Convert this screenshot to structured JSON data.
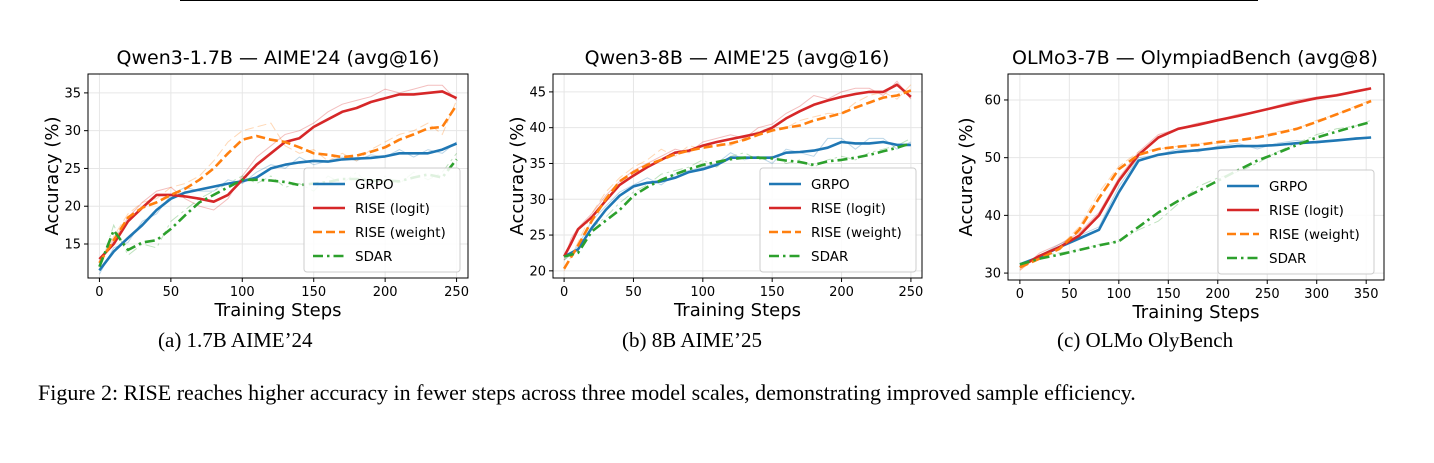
{
  "chart_data": [
    {
      "type": "line",
      "title": "Qwen3-1.7B — AIME'24 (avg@16)",
      "xlabel": "Training Steps",
      "ylabel": "Accuracy (%)",
      "xlim": [
        -8,
        258
      ],
      "ylim": [
        10.5,
        37.5
      ],
      "xticks": [
        0,
        50,
        100,
        150,
        200,
        250
      ],
      "yticks": [
        15,
        20,
        25,
        30,
        35
      ],
      "grid": true,
      "legend": "lower-right",
      "series": [
        {
          "name": "GRPO",
          "color": "#1f77b4",
          "style": "solid",
          "x": [
            0,
            10,
            20,
            30,
            40,
            50,
            60,
            70,
            80,
            90,
            100,
            110,
            120,
            130,
            140,
            150,
            160,
            170,
            180,
            190,
            200,
            210,
            220,
            230,
            240,
            250
          ],
          "y": [
            11.5,
            14.0,
            15.8,
            17.5,
            19.5,
            21.0,
            21.8,
            22.2,
            22.6,
            23.0,
            23.3,
            23.8,
            25.0,
            25.5,
            25.8,
            26.0,
            25.9,
            26.2,
            26.3,
            26.4,
            26.6,
            27.0,
            27.0,
            27.0,
            27.5,
            28.3
          ],
          "raw": [
            11.0,
            14.5,
            15.2,
            18.0,
            19.0,
            21.5,
            22.5,
            22.0,
            22.0,
            23.5,
            23.0,
            24.5,
            25.5,
            25.0,
            26.5,
            25.5,
            26.0,
            26.5,
            26.0,
            26.8,
            26.5,
            27.5,
            26.5,
            27.5,
            27.0,
            28.5
          ]
        },
        {
          "name": "RISE (logit)",
          "color": "#d62728",
          "style": "solid",
          "x": [
            0,
            10,
            20,
            30,
            40,
            50,
            60,
            70,
            80,
            90,
            100,
            110,
            120,
            130,
            140,
            150,
            160,
            170,
            180,
            190,
            200,
            210,
            220,
            230,
            240,
            250
          ],
          "y": [
            13.0,
            15.0,
            18.0,
            19.8,
            21.5,
            21.5,
            21.3,
            21.0,
            20.6,
            21.5,
            23.5,
            25.5,
            27.0,
            28.5,
            29.0,
            30.5,
            31.5,
            32.5,
            33.0,
            33.8,
            34.3,
            34.8,
            34.8,
            35.0,
            35.2,
            34.3
          ],
          "raw": [
            12.5,
            15.5,
            18.5,
            20.5,
            22.0,
            22.5,
            21.0,
            20.0,
            19.5,
            21.0,
            24.0,
            26.5,
            28.0,
            29.5,
            30.0,
            31.0,
            32.5,
            33.5,
            34.0,
            34.5,
            35.5,
            35.0,
            35.5,
            36.0,
            36.0,
            34.0
          ]
        },
        {
          "name": "RISE (weight)",
          "color": "#ff7f0e",
          "style": "dash",
          "x": [
            0,
            10,
            20,
            30,
            40,
            50,
            60,
            70,
            80,
            90,
            100,
            110,
            120,
            130,
            140,
            150,
            160,
            170,
            180,
            190,
            200,
            210,
            220,
            230,
            240,
            250
          ],
          "y": [
            12.5,
            15.5,
            18.5,
            19.8,
            20.5,
            21.5,
            22.3,
            23.5,
            25.0,
            27.0,
            28.8,
            29.3,
            28.8,
            28.5,
            27.8,
            27.0,
            26.8,
            26.5,
            26.7,
            27.2,
            27.8,
            28.8,
            29.5,
            30.3,
            30.5,
            33.4
          ],
          "raw": [
            12.0,
            16.0,
            19.0,
            20.5,
            21.0,
            22.5,
            23.0,
            24.0,
            26.0,
            28.5,
            30.0,
            30.5,
            31.0,
            28.0,
            27.0,
            27.5,
            26.0,
            27.0,
            26.0,
            27.5,
            28.5,
            29.5,
            30.0,
            31.0,
            29.5,
            34.0
          ]
        },
        {
          "name": "SDAR",
          "color": "#2ca02c",
          "style": "dashdot",
          "x": [
            0,
            10,
            20,
            30,
            40,
            50,
            60,
            70,
            80,
            90,
            100,
            110,
            120,
            130,
            140,
            150,
            160,
            170,
            180,
            190,
            200,
            210,
            220,
            230,
            240,
            250
          ],
          "y": [
            12.0,
            16.8,
            14.2,
            15.2,
            15.5,
            17.0,
            18.8,
            20.5,
            21.5,
            22.5,
            23.5,
            23.5,
            23.4,
            23.2,
            22.8,
            23.0,
            23.2,
            23.6,
            23.6,
            23.4,
            23.4,
            23.3,
            23.8,
            24.2,
            23.8,
            26.2
          ],
          "raw": [
            11.5,
            17.5,
            13.5,
            15.0,
            14.5,
            18.0,
            19.5,
            21.0,
            22.0,
            23.0,
            24.0,
            23.0,
            24.0,
            22.5,
            23.0,
            22.0,
            24.0,
            23.0,
            24.5,
            22.5,
            24.0,
            23.0,
            24.5,
            23.5,
            24.5,
            27.0
          ]
        }
      ]
    },
    {
      "type": "line",
      "title": "Qwen3-8B — AIME'25 (avg@16)",
      "xlabel": "Training Steps",
      "ylabel": "Accuracy (%)",
      "xlim": [
        -8,
        258
      ],
      "ylim": [
        19,
        47.5
      ],
      "xticks": [
        0,
        50,
        100,
        150,
        200,
        250
      ],
      "yticks": [
        20,
        25,
        30,
        35,
        40,
        45
      ],
      "grid": true,
      "legend": "lower-right",
      "series": [
        {
          "name": "GRPO",
          "color": "#1f77b4",
          "style": "solid",
          "x": [
            0,
            10,
            20,
            30,
            40,
            50,
            60,
            70,
            80,
            90,
            100,
            110,
            120,
            130,
            140,
            150,
            160,
            170,
            180,
            190,
            200,
            210,
            220,
            230,
            240,
            250
          ],
          "y": [
            22.0,
            23.0,
            26.0,
            28.5,
            30.5,
            31.8,
            32.3,
            32.5,
            33.0,
            33.8,
            34.2,
            34.8,
            35.8,
            35.8,
            35.8,
            35.8,
            36.5,
            36.6,
            36.8,
            37.2,
            38.0,
            37.8,
            37.8,
            38.0,
            37.6,
            37.6
          ],
          "raw": [
            21.5,
            23.5,
            27.0,
            29.0,
            31.0,
            32.0,
            33.0,
            32.0,
            33.5,
            34.0,
            34.5,
            35.0,
            36.5,
            35.5,
            36.0,
            35.0,
            37.0,
            36.5,
            36.0,
            38.5,
            38.5,
            37.0,
            38.5,
            38.5,
            37.0,
            38.0
          ]
        },
        {
          "name": "RISE (logit)",
          "color": "#d62728",
          "style": "solid",
          "x": [
            0,
            5,
            10,
            20,
            30,
            40,
            50,
            60,
            70,
            80,
            90,
            100,
            110,
            120,
            130,
            140,
            150,
            160,
            170,
            180,
            190,
            200,
            210,
            220,
            230,
            240,
            250
          ],
          "y": [
            22.0,
            23.8,
            25.8,
            27.5,
            29.8,
            32.0,
            33.3,
            34.5,
            35.5,
            36.5,
            36.8,
            37.5,
            38.0,
            38.4,
            38.8,
            39.2,
            40.0,
            41.3,
            42.3,
            43.2,
            43.8,
            44.3,
            44.7,
            45.0,
            45.0,
            46.0,
            44.3
          ],
          "raw": [
            21.5,
            24.5,
            26.0,
            28.0,
            30.5,
            32.5,
            34.0,
            35.0,
            36.0,
            37.0,
            36.5,
            38.0,
            38.5,
            39.0,
            38.5,
            40.0,
            40.5,
            42.0,
            43.0,
            44.5,
            44.0,
            45.0,
            45.5,
            45.5,
            44.5,
            46.5,
            44.0
          ]
        },
        {
          "name": "RISE (weight)",
          "color": "#ff7f0e",
          "style": "dash",
          "x": [
            0,
            10,
            20,
            30,
            40,
            50,
            60,
            70,
            80,
            90,
            100,
            110,
            120,
            130,
            140,
            150,
            160,
            170,
            180,
            190,
            200,
            210,
            220,
            230,
            240,
            250
          ],
          "y": [
            20.3,
            23.5,
            27.0,
            30.0,
            32.5,
            33.8,
            34.8,
            35.5,
            36.3,
            36.8,
            37.2,
            37.5,
            37.8,
            38.3,
            39.0,
            39.6,
            40.0,
            40.3,
            41.0,
            41.5,
            42.0,
            42.8,
            43.5,
            44.2,
            44.5,
            45.2
          ],
          "raw": [
            20.0,
            24.0,
            28.0,
            31.0,
            33.0,
            34.5,
            35.5,
            37.0,
            36.0,
            37.5,
            37.0,
            38.0,
            37.5,
            38.5,
            39.5,
            40.0,
            40.0,
            41.0,
            41.5,
            42.0,
            42.0,
            43.5,
            44.5,
            45.0,
            44.0,
            46.0
          ]
        },
        {
          "name": "SDAR",
          "color": "#2ca02c",
          "style": "dashdot",
          "x": [
            0,
            10,
            20,
            30,
            40,
            50,
            60,
            70,
            80,
            90,
            100,
            110,
            120,
            130,
            140,
            150,
            160,
            170,
            180,
            190,
            200,
            210,
            220,
            230,
            240,
            250
          ],
          "y": [
            22.0,
            22.5,
            25.5,
            27.0,
            28.5,
            30.5,
            31.7,
            32.7,
            33.5,
            34.2,
            34.8,
            35.2,
            35.6,
            35.8,
            35.8,
            35.7,
            35.4,
            35.2,
            34.8,
            35.3,
            35.5,
            35.8,
            36.2,
            36.7,
            37.2,
            37.8
          ],
          "raw": [
            21.5,
            23.0,
            26.0,
            27.5,
            29.5,
            31.0,
            32.0,
            33.5,
            34.0,
            34.5,
            35.5,
            34.5,
            36.0,
            36.5,
            35.5,
            36.0,
            35.0,
            35.5,
            34.5,
            35.5,
            36.0,
            35.5,
            36.5,
            37.0,
            37.5,
            38.5
          ]
        }
      ]
    },
    {
      "type": "line",
      "title": "OLMo3-7B — OlympiadBench (avg@8)",
      "xlabel": "Training Steps",
      "ylabel": "Accuracy (%)",
      "xlim": [
        -12,
        368
      ],
      "ylim": [
        28.8,
        64.5
      ],
      "xticks": [
        0,
        50,
        100,
        150,
        200,
        250,
        300,
        350
      ],
      "yticks": [
        30,
        40,
        50,
        60
      ],
      "grid": true,
      "legend": "lower-right",
      "series": [
        {
          "name": "GRPO",
          "color": "#1f77b4",
          "style": "solid",
          "x": [
            0,
            20,
            40,
            60,
            80,
            100,
            120,
            140,
            160,
            180,
            200,
            220,
            240,
            260,
            280,
            300,
            320,
            340,
            355
          ],
          "y": [
            31.5,
            32.8,
            34.5,
            36.0,
            37.5,
            44.0,
            49.5,
            50.5,
            51.0,
            51.3,
            51.7,
            52.0,
            52.0,
            52.2,
            52.5,
            52.7,
            53.0,
            53.3,
            53.5
          ],
          "raw": [
            31.0,
            33.0,
            35.0,
            36.5,
            38.0,
            45.0,
            50.0,
            50.5,
            51.5,
            51.0,
            52.0,
            52.5,
            51.5,
            52.5,
            53.0,
            52.5,
            53.0,
            53.5,
            53.5
          ]
        },
        {
          "name": "RISE (logit)",
          "color": "#d62728",
          "style": "solid",
          "x": [
            0,
            20,
            40,
            60,
            80,
            100,
            120,
            140,
            160,
            180,
            200,
            220,
            240,
            260,
            280,
            300,
            320,
            340,
            355
          ],
          "y": [
            31.0,
            33.0,
            34.5,
            36.5,
            40.0,
            46.0,
            50.5,
            53.5,
            55.0,
            55.7,
            56.5,
            57.2,
            58.0,
            58.8,
            59.6,
            60.3,
            60.8,
            61.5,
            62.0
          ],
          "raw": [
            30.5,
            33.5,
            35.0,
            37.0,
            40.5,
            46.5,
            51.0,
            54.0,
            55.0,
            56.0,
            56.5,
            57.5,
            58.0,
            59.0,
            60.0,
            60.5,
            61.0,
            61.5,
            62.0
          ]
        },
        {
          "name": "RISE (weight)",
          "color": "#ff7f0e",
          "style": "dash",
          "x": [
            0,
            20,
            40,
            60,
            80,
            100,
            120,
            140,
            160,
            180,
            200,
            220,
            240,
            260,
            280,
            300,
            320,
            340,
            355
          ],
          "y": [
            31.0,
            32.5,
            34.2,
            37.5,
            43.0,
            48.0,
            50.5,
            51.5,
            51.9,
            52.2,
            52.7,
            53.0,
            53.5,
            54.2,
            55.0,
            56.2,
            57.5,
            58.8,
            59.8
          ],
          "raw": [
            30.5,
            33.0,
            34.5,
            38.0,
            44.0,
            48.5,
            51.0,
            51.5,
            52.0,
            52.5,
            52.5,
            53.0,
            53.5,
            54.5,
            55.0,
            56.5,
            57.5,
            59.0,
            60.0
          ]
        },
        {
          "name": "SDAR",
          "color": "#2ca02c",
          "style": "dashdot",
          "x": [
            0,
            20,
            40,
            60,
            80,
            100,
            120,
            140,
            160,
            180,
            200,
            220,
            240,
            260,
            280,
            300,
            320,
            340,
            355
          ],
          "y": [
            31.5,
            32.5,
            33.2,
            34.0,
            34.8,
            35.5,
            38.0,
            40.5,
            42.5,
            44.2,
            46.0,
            47.8,
            49.5,
            50.8,
            52.2,
            53.5,
            54.5,
            55.5,
            56.2
          ],
          "raw": [
            31.0,
            33.0,
            33.5,
            34.0,
            35.0,
            35.5,
            37.5,
            39.0,
            42.0,
            45.0,
            46.5,
            47.5,
            49.0,
            51.0,
            52.5,
            54.0,
            55.0,
            55.5,
            56.5
          ]
        }
      ]
    }
  ],
  "subcaptions": [
    "(a) 1.7B AIME’24",
    "(b) 8B AIME’25",
    "(c) OLMo OlyBench"
  ],
  "figure_caption": "Figure 2: RISE reaches higher accuracy in fewer steps across three model scales, demonstrating improved sample efficiency."
}
